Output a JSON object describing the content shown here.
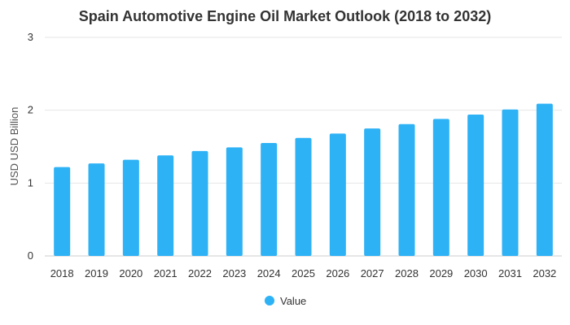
{
  "chart_data": {
    "type": "bar",
    "title": "Spain Automotive Engine Oil Market Outlook (2018 to 2032)",
    "xlabel": "",
    "ylabel": "USD USD Billion",
    "ylim": [
      0,
      3
    ],
    "yticks": [
      0,
      1,
      2,
      3
    ],
    "grid": true,
    "legend_placement": "bottom",
    "categories": [
      "2018",
      "2019",
      "2020",
      "2021",
      "2022",
      "2023",
      "2024",
      "2025",
      "2026",
      "2027",
      "2028",
      "2029",
      "2030",
      "2031",
      "2032"
    ],
    "series": [
      {
        "name": "Value",
        "color": "#2eb2f6",
        "values": [
          1.22,
          1.27,
          1.32,
          1.38,
          1.44,
          1.49,
          1.55,
          1.62,
          1.68,
          1.75,
          1.81,
          1.88,
          1.94,
          2.01,
          2.09
        ]
      }
    ]
  }
}
